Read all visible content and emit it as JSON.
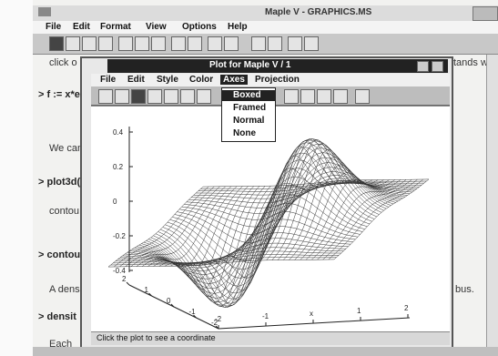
{
  "main_window": {
    "title": "Maple V - GRAPHICS.MS",
    "menu": [
      "File",
      "Edit",
      "Format",
      "View",
      "Options",
      "Help"
    ]
  },
  "worksheet": {
    "line1": "click o",
    "line1_right": "tands wi",
    "line2": "> f := x*e",
    "line3": "We can",
    "line4": "> plot3d(",
    "line5": "contou",
    "line6": "> contou",
    "line7": "A dens",
    "line7_right": "bus.",
    "line8": "> densit",
    "line9": "Each"
  },
  "plot_window": {
    "title": "Plot for Maple V / 1",
    "menu": [
      "File",
      "Edit",
      "Style",
      "Color",
      "Axes",
      "Projection"
    ],
    "active_menu": "Axes",
    "axes_menu_items": [
      "Boxed",
      "Framed",
      "Normal",
      "None"
    ],
    "highlighted_item": "Boxed",
    "status_text": "Click the plot to see a coordinate"
  },
  "chart_data": {
    "type": "surface3d",
    "z_ticks": [
      "0.4",
      "0.2",
      "0",
      "-0.2",
      "-0.4"
    ],
    "x_ticks": [
      "-2",
      "-1",
      "x",
      "1",
      "2"
    ],
    "y_ticks": [
      "2",
      "1",
      "0",
      "-1",
      "-2"
    ]
  },
  "colors": {
    "active_title": "#222222",
    "mesh": "#333333"
  }
}
